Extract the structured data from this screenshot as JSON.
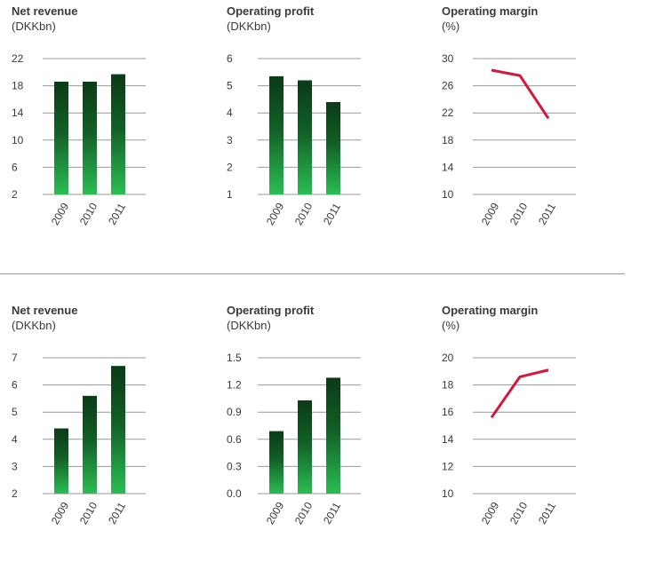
{
  "colors": {
    "bar_top": "#0b3a17",
    "bar_bottom": "#2bbd54",
    "line": "#d3183c",
    "grid": "#999999",
    "text": "#3a3a3a"
  },
  "chart_data": [
    {
      "id": "c1",
      "type": "bar",
      "title": "Net revenue",
      "unit": "(DKKbn)",
      "categories": [
        "2009",
        "2010",
        "2011"
      ],
      "values": [
        18.6,
        18.6,
        19.7
      ],
      "yticks": [
        "22",
        "18",
        "14",
        "10",
        "6",
        "2"
      ],
      "ylim": [
        2,
        22
      ]
    },
    {
      "id": "c2",
      "type": "bar",
      "title": "Operating profit",
      "unit": "(DKKbn)",
      "categories": [
        "2009",
        "2010",
        "2011"
      ],
      "values": [
        5.35,
        5.2,
        4.4
      ],
      "yticks": [
        "6",
        "5",
        "4",
        "3",
        "2",
        "1"
      ],
      "ylim": [
        1,
        6
      ]
    },
    {
      "id": "c3",
      "type": "line",
      "title": "Operating margin",
      "unit": "(%)",
      "categories": [
        "2009",
        "2010",
        "2011"
      ],
      "values": [
        28.3,
        27.5,
        21.2
      ],
      "yticks": [
        "30",
        "26",
        "22",
        "18",
        "14",
        "10"
      ],
      "ylim": [
        10,
        30
      ]
    },
    {
      "id": "c4",
      "type": "bar",
      "title": "Net revenue",
      "unit": "(DKKbn)",
      "categories": [
        "2009",
        "2010",
        "2011"
      ],
      "values": [
        4.4,
        5.6,
        6.7
      ],
      "yticks": [
        "7",
        "6",
        "5",
        "4",
        "3",
        "2"
      ],
      "ylim": [
        2,
        7
      ]
    },
    {
      "id": "c5",
      "type": "bar",
      "title": "Operating profit",
      "unit": "(DKKbn)",
      "categories": [
        "2009",
        "2010",
        "2011"
      ],
      "values": [
        0.69,
        1.03,
        1.28
      ],
      "yticks": [
        "1.5",
        "1.2",
        "0.9",
        "0.6",
        "0.3",
        "0.0"
      ],
      "ylim": [
        0,
        1.5
      ]
    },
    {
      "id": "c6",
      "type": "line",
      "title": "Operating margin",
      "unit": "(%)",
      "categories": [
        "2009",
        "2010",
        "2011"
      ],
      "values": [
        15.6,
        18.6,
        19.1
      ],
      "yticks": [
        "20",
        "18",
        "16",
        "14",
        "12",
        "10"
      ],
      "ylim": [
        10,
        20
      ]
    }
  ]
}
